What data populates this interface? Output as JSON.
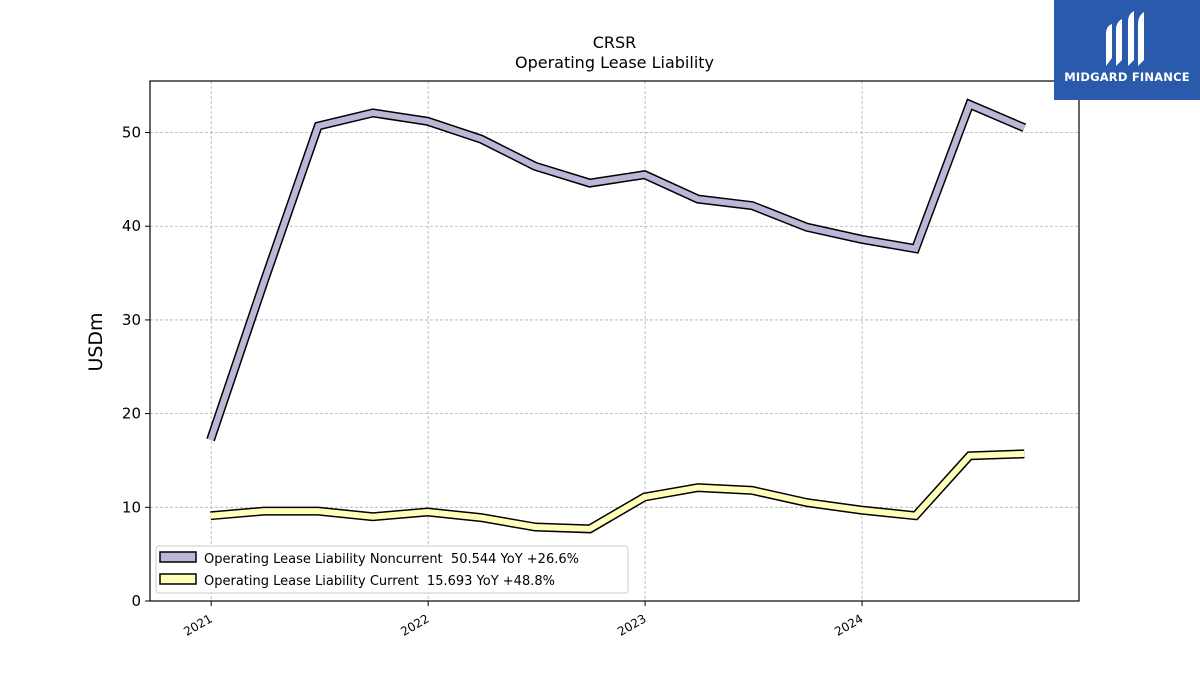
{
  "brand": {
    "name": "MIDGARD FINANCE",
    "color": "#2a5aab"
  },
  "chart_data": {
    "type": "line",
    "title": "CRSR",
    "subtitle": "Operating Lease Liability",
    "xlabel": "",
    "ylabel": "USDm",
    "ylim": [
      0,
      55.5
    ],
    "yticks": [
      0,
      10,
      20,
      30,
      40,
      50
    ],
    "xticks": [
      "2021",
      "2022",
      "2023",
      "2024"
    ],
    "grid": true,
    "legend_position": "lower-left",
    "x": [
      "2020-12-31",
      "2021-03-31",
      "2021-06-30",
      "2021-09-30",
      "2021-12-31",
      "2022-03-31",
      "2022-06-30",
      "2022-09-30",
      "2022-12-31",
      "2023-03-31",
      "2023-06-30",
      "2023-09-30",
      "2023-12-31",
      "2024-03-31",
      "2024-06-30",
      "2024-09-30"
    ],
    "series": [
      {
        "name": "Operating Lease Liability Noncurrent",
        "legend": "Operating Lease Liability Noncurrent  50.544 YoY +26.6%",
        "color": "#b9b8d6",
        "values": [
          17.2,
          34.1,
          50.7,
          52.1,
          51.2,
          49.3,
          46.4,
          44.6,
          45.5,
          42.9,
          42.2,
          39.9,
          38.6,
          37.6,
          53.0,
          50.5
        ]
      },
      {
        "name": "Operating Lease Liability Current",
        "legend": "Operating Lease Liability Current  15.693 YoY +48.8%",
        "color": "#ffffb9",
        "values": [
          9.1,
          9.6,
          9.6,
          9.0,
          9.5,
          8.9,
          7.9,
          7.7,
          11.1,
          12.1,
          11.8,
          10.5,
          9.7,
          9.1,
          15.5,
          15.7
        ]
      }
    ]
  }
}
